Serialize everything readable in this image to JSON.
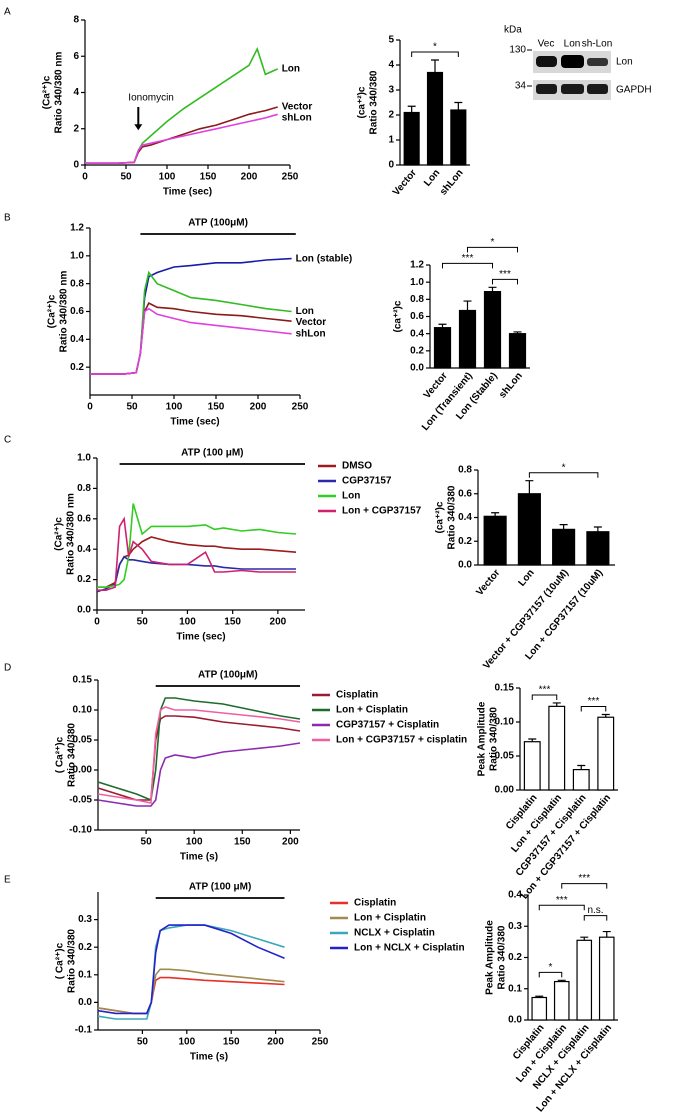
{
  "chart_data": [
    {
      "type": "line",
      "panel": "A",
      "xlabel": "Time (sec)",
      "ylabel": [
        "(Ca²⁺)c",
        "Ratio 340/380 nm"
      ],
      "xlim": [
        0,
        250
      ],
      "xticks": [
        0,
        50,
        100,
        150,
        200,
        250
      ],
      "ylim": [
        0,
        8
      ],
      "yticks": [
        0,
        2,
        4,
        6,
        8
      ],
      "legend": "line-end",
      "legend_colored_text": true,
      "annotation": {
        "text": "Ionomycin",
        "x": 65
      },
      "x": [
        0,
        20,
        40,
        60,
        65,
        70,
        80,
        100,
        120,
        140,
        160,
        180,
        200,
        210,
        220,
        235
      ],
      "series": [
        {
          "name": "Lon",
          "color": "#33bb22",
          "values": [
            0.1,
            0.1,
            0.1,
            0.15,
            0.8,
            1.2,
            1.6,
            2.4,
            3.1,
            3.7,
            4.3,
            4.9,
            5.5,
            6.4,
            5.0,
            5.3
          ]
        },
        {
          "name": "Vector",
          "color": "#8b1a1a",
          "values": [
            0.1,
            0.1,
            0.1,
            0.15,
            0.7,
            1.0,
            1.1,
            1.4,
            1.7,
            2.0,
            2.2,
            2.5,
            2.8,
            2.9,
            3.0,
            3.2
          ]
        },
        {
          "name": "shLon",
          "color": "#e040e0",
          "values": [
            0.1,
            0.1,
            0.1,
            0.15,
            0.8,
            1.1,
            1.2,
            1.4,
            1.6,
            1.8,
            2.0,
            2.2,
            2.4,
            2.5,
            2.6,
            2.8
          ]
        }
      ]
    },
    {
      "type": "bar",
      "ylabel": [
        "(ca⁺²)c",
        "Ratio 340/380"
      ],
      "color": "#000000",
      "categories": [
        "Vector",
        "Lon",
        "shLon"
      ],
      "values": [
        2.1,
        3.7,
        2.2
      ],
      "errors": [
        0.25,
        0.5,
        0.3
      ],
      "ylim": [
        0,
        5
      ],
      "yticks": [
        0,
        1,
        2,
        3,
        4,
        5
      ],
      "significance": [
        "*"
      ]
    },
    {
      "type": "line",
      "panel": "B",
      "xlabel": "Time (sec)",
      "ylabel": [
        "(Ca²⁺)c",
        "Ratio 340/380 nm"
      ],
      "xlim": [
        0,
        250
      ],
      "xticks": [
        0,
        50,
        100,
        150,
        200,
        250
      ],
      "ylim": [
        0,
        1.2
      ],
      "yticks": [
        0.2,
        0.4,
        0.6,
        0.8,
        {
          "value": 1,
          "label": "1.0"
        },
        1.2
      ],
      "legend": "line-end",
      "legend_colored_text": true,
      "annotation": {
        "text": "ATP (100μM)",
        "from": 60,
        "to": 245
      },
      "x": [
        0,
        20,
        40,
        55,
        60,
        65,
        70,
        80,
        100,
        120,
        150,
        180,
        210,
        240
      ],
      "series": [
        {
          "name": "Lon (stable)",
          "color": "#1a1aaa",
          "values": [
            0.15,
            0.15,
            0.15,
            0.16,
            0.3,
            0.7,
            0.85,
            0.88,
            0.92,
            0.93,
            0.95,
            0.95,
            0.97,
            0.98
          ]
        },
        {
          "name": "Lon",
          "color": "#33bb22",
          "values": [
            0.15,
            0.15,
            0.15,
            0.16,
            0.3,
            0.75,
            0.88,
            0.8,
            0.75,
            0.7,
            0.68,
            0.65,
            0.62,
            0.6
          ]
        },
        {
          "name": "Vector",
          "color": "#8b1a1a",
          "values": [
            0.15,
            0.15,
            0.15,
            0.16,
            0.3,
            0.6,
            0.66,
            0.63,
            0.62,
            0.6,
            0.58,
            0.57,
            0.55,
            0.53
          ]
        },
        {
          "name": "shLon",
          "color": "#e040e0",
          "values": [
            0.15,
            0.15,
            0.15,
            0.16,
            0.3,
            0.6,
            0.62,
            0.58,
            0.55,
            0.52,
            0.5,
            0.48,
            0.46,
            0.44
          ]
        }
      ]
    },
    {
      "type": "bar",
      "ylabel": [
        "(ca⁺²)c"
      ],
      "color": "#000000",
      "categories": [
        "Vector",
        "Lon (Transient)",
        "Lon (Stable)",
        "shLon"
      ],
      "values": [
        0.47,
        0.67,
        0.89,
        0.4
      ],
      "errors": [
        0.04,
        0.11,
        0.05,
        0.02
      ],
      "ylim": [
        0,
        1.2
      ],
      "yticks": [
        {
          "value": 0,
          "label": "0.0"
        },
        0.2,
        0.4,
        0.6,
        0.8,
        {
          "value": 1,
          "label": "1.0"
        },
        1.2
      ],
      "significance": [
        "***",
        "*",
        "***"
      ]
    },
    {
      "type": "line",
      "panel": "C",
      "xlabel": "Time (sec)",
      "ylabel": [
        "(Ca²⁺)c",
        "Ratio 340/380 nm"
      ],
      "xlim": [
        0,
        230
      ],
      "xticks": [
        0,
        50,
        100,
        150,
        200
      ],
      "ylim": [
        0,
        1
      ],
      "yticks": [
        {
          "value": 0,
          "label": "0.0"
        },
        0.2,
        0.4,
        0.6,
        0.8,
        {
          "value": 1,
          "label": "1.0"
        }
      ],
      "legend": "right",
      "legend_colored_text": true,
      "annotation": {
        "text": "ATP (100 μM)",
        "from": 25,
        "to": 230
      },
      "x": [
        0,
        10,
        20,
        25,
        30,
        35,
        40,
        50,
        60,
        80,
        100,
        120,
        130,
        140,
        160,
        180,
        200,
        220
      ],
      "series": [
        {
          "name": "DMSO",
          "color": "#9b1c1c",
          "values": [
            0.15,
            0.15,
            0.18,
            0.3,
            0.35,
            0.36,
            0.4,
            0.45,
            0.48,
            0.45,
            0.43,
            0.42,
            0.42,
            0.41,
            0.4,
            0.4,
            0.39,
            0.38
          ]
        },
        {
          "name": "CGP37157",
          "color": "#2a2aa8",
          "values": [
            0.12,
            0.14,
            0.17,
            0.3,
            0.35,
            0.33,
            0.33,
            0.32,
            0.31,
            0.3,
            0.3,
            0.29,
            0.29,
            0.28,
            0.27,
            0.27,
            0.27,
            0.27
          ]
        },
        {
          "name": "Lon",
          "color": "#33cc22",
          "values": [
            0.15,
            0.15,
            0.16,
            0.17,
            0.2,
            0.35,
            0.7,
            0.5,
            0.55,
            0.55,
            0.55,
            0.56,
            0.53,
            0.54,
            0.52,
            0.53,
            0.51,
            0.5
          ]
        },
        {
          "name": "Lon + CGP37157",
          "color": "#d02070",
          "values": [
            0.13,
            0.13,
            0.15,
            0.55,
            0.6,
            0.35,
            0.45,
            0.4,
            0.32,
            0.3,
            0.3,
            0.38,
            0.25,
            0.25,
            0.26,
            0.25,
            0.25,
            0.25
          ]
        }
      ]
    },
    {
      "type": "bar",
      "ylabel": [
        "(ca⁺²)c",
        "Ratio 340/380"
      ],
      "color": "#000000",
      "categories": [
        "Vector",
        "Lon",
        "Vector + CGP37157 (10uM)",
        "Lon + CGP37157 (10uM)"
      ],
      "values": [
        0.41,
        0.6,
        0.3,
        0.28
      ],
      "errors": [
        0.03,
        0.11,
        0.04,
        0.04
      ],
      "ylim": [
        0,
        0.8
      ],
      "yticks": [
        {
          "value": 0,
          "label": "0.0"
        },
        0.2,
        0.4,
        0.6,
        0.8
      ],
      "significance": [
        "*"
      ]
    },
    {
      "type": "line",
      "panel": "D",
      "xlabel": "Time (s)",
      "ylabel": [
        "( Ca²⁺)c",
        "Ratio 340/380"
      ],
      "xlim": [
        0,
        210
      ],
      "xticks": [
        50,
        100,
        150,
        200
      ],
      "ylim": [
        -0.1,
        0.15
      ],
      "yticks": [
        {
          "value": -0.1,
          "label": "-0.10"
        },
        -0.05,
        {
          "value": 0,
          "label": "0.00"
        },
        0.05,
        {
          "value": 0.1,
          "label": "0.10"
        },
        0.15
      ],
      "legend": "right",
      "legend_colored_text": false,
      "annotation": {
        "text": "ATP (100μM)",
        "from": 60,
        "to": 210
      },
      "x": [
        0,
        20,
        40,
        55,
        60,
        65,
        70,
        80,
        100,
        130,
        160,
        190,
        210
      ],
      "series": [
        {
          "name": "Cisplatin",
          "color": "#9b1b30",
          "values": [
            -0.03,
            -0.04,
            -0.05,
            -0.05,
            0.05,
            0.085,
            0.09,
            0.09,
            0.088,
            0.08,
            0.075,
            0.07,
            0.065
          ]
        },
        {
          "name": "Lon + Cisplatin",
          "color": "#1e6b2e",
          "values": [
            -0.02,
            -0.03,
            -0.04,
            -0.05,
            0.0,
            0.1,
            0.12,
            0.12,
            0.115,
            0.11,
            0.1,
            0.09,
            0.085
          ]
        },
        {
          "name": "CGP37157 + Cisplatin",
          "color": "#8e2ab0",
          "values": [
            -0.05,
            -0.055,
            -0.06,
            -0.06,
            -0.05,
            0.0,
            0.02,
            0.025,
            0.02,
            0.03,
            0.035,
            0.04,
            0.045
          ]
        },
        {
          "name": "Lon + CGP37157 + cisplatin",
          "color": "#f060a0",
          "values": [
            -0.04,
            -0.045,
            -0.05,
            -0.055,
            0.06,
            0.1,
            0.105,
            0.1,
            0.1,
            0.095,
            0.09,
            0.085,
            0.08
          ]
        }
      ]
    },
    {
      "type": "bar",
      "ylabel": [
        "Peak Amplitude",
        "Ratio 340/380"
      ],
      "color": "#ffffff",
      "categories": [
        "Cisplatin",
        "Lon + Cisplatin",
        "CGP37157 + Cisplatin",
        "Lon + CGP37157 + Cisplatin"
      ],
      "values": [
        0.071,
        0.123,
        0.03,
        0.107
      ],
      "errors": [
        0.004,
        0.005,
        0.006,
        0.004
      ],
      "ylim": [
        0,
        0.15
      ],
      "yticks": [
        {
          "value": 0,
          "label": "0.00"
        },
        0.05,
        {
          "value": 0.1,
          "label": "0.10"
        },
        0.15
      ],
      "significance": [
        "***",
        "***"
      ]
    },
    {
      "type": "line",
      "panel": "E",
      "xlabel": "Time (s)",
      "ylabel": [
        "( Ca²⁺)c",
        "Ratio 340/380"
      ],
      "xlim": [
        0,
        250
      ],
      "xticks": [
        50,
        100,
        150,
        200,
        250
      ],
      "ylim": [
        -0.1,
        0.4
      ],
      "yticks": [
        -0.1,
        {
          "value": 0,
          "label": "0.0"
        },
        0.1,
        0.2,
        0.3
      ],
      "legend": "right",
      "legend_colored_text": false,
      "annotation": {
        "text": "ATP (100 μM)",
        "from": 65,
        "to": 210
      },
      "x": [
        0,
        20,
        40,
        55,
        60,
        65,
        70,
        80,
        100,
        120,
        150,
        180,
        210
      ],
      "series": [
        {
          "name": "Cisplatin",
          "color": "#e8302a",
          "values": [
            -0.02,
            -0.03,
            -0.04,
            -0.04,
            0.0,
            0.08,
            0.09,
            0.09,
            0.085,
            0.08,
            0.075,
            0.07,
            0.065
          ]
        },
        {
          "name": "Lon + Cisplatin",
          "color": "#a08a50",
          "values": [
            -0.02,
            -0.03,
            -0.04,
            -0.04,
            0.0,
            0.1,
            0.12,
            0.12,
            0.115,
            0.105,
            0.095,
            0.085,
            0.075
          ]
        },
        {
          "name": "NCLX + Cisplatin",
          "color": "#3aa8b8",
          "values": [
            -0.05,
            -0.06,
            -0.06,
            -0.06,
            0.0,
            0.2,
            0.26,
            0.27,
            0.28,
            0.28,
            0.26,
            0.23,
            0.2
          ]
        },
        {
          "name": "Lon + NCLX + Cisplatin",
          "color": "#2222cc",
          "values": [
            -0.03,
            -0.04,
            -0.04,
            -0.04,
            0.0,
            0.18,
            0.26,
            0.28,
            0.28,
            0.28,
            0.25,
            0.2,
            0.16
          ]
        }
      ]
    },
    {
      "type": "bar",
      "ylabel": [
        "Peak Amplitude",
        "Ratio 340/380"
      ],
      "color": "#ffffff",
      "categories": [
        "Cisplatin",
        "Lon + Cisplatin",
        "NCLX + Cisplatin",
        "Lon + NCLX + Cisplatin"
      ],
      "values": [
        0.072,
        0.123,
        0.255,
        0.265
      ],
      "errors": [
        0.004,
        0.004,
        0.01,
        0.018
      ],
      "ylim": [
        0,
        0.4
      ],
      "yticks": [
        {
          "value": 0,
          "label": "0.0"
        },
        0.1,
        0.2,
        0.3,
        0.4
      ],
      "significance": [
        "*",
        "***",
        "***",
        "n.s."
      ]
    }
  ],
  "blot": {
    "unit": "kDa",
    "markers": [
      130,
      34
    ],
    "lanes": [
      "Vec",
      "Lon",
      "sh-Lon"
    ],
    "bands": [
      "Lon",
      "GAPDH"
    ]
  }
}
